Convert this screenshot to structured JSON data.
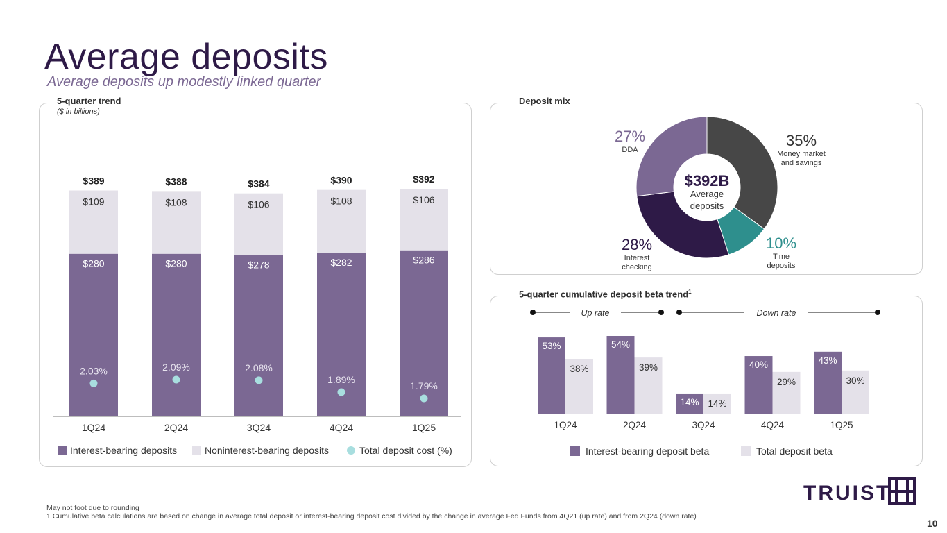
{
  "title": "Average deposits",
  "subtitle": "Average deposits up modestly linked quarter",
  "panels": {
    "trend_label": "5-quarter trend",
    "trend_sublabel": "($ in billions)",
    "mix_label": "Deposit mix",
    "beta_label": "5-quarter cumulative deposit beta trend",
    "beta_superscript": "1"
  },
  "colors": {
    "interest_bearing": "#7b6893",
    "noninterest": "#e4e1e9",
    "cost_dot": "#a8dedf",
    "dark": "#2e1a47",
    "mm": "#474747",
    "time": "#2e8f8d",
    "ib_beta": "#7b6893",
    "total_beta": "#e4e1e9"
  },
  "chart_data": [
    {
      "type": "bar",
      "title": "5-quarter trend",
      "ylabel": "($ in billions)",
      "categories": [
        "1Q24",
        "2Q24",
        "3Q24",
        "4Q24",
        "1Q25"
      ],
      "series": [
        {
          "name": "Interest-bearing deposits",
          "values": [
            280,
            280,
            278,
            282,
            286
          ],
          "labels": [
            "$280",
            "$280",
            "$278",
            "$282",
            "$286"
          ]
        },
        {
          "name": "Noninterest-bearing deposits",
          "values": [
            109,
            108,
            106,
            108,
            106
          ],
          "labels": [
            "$109",
            "$108",
            "$106",
            "$108",
            "$106"
          ]
        },
        {
          "name": "Total deposit cost (%)",
          "values": [
            2.03,
            2.09,
            2.08,
            1.89,
            1.79
          ],
          "labels": [
            "2.03%",
            "2.09%",
            "2.08%",
            "1.89%",
            "1.79%"
          ]
        }
      ],
      "totals": [
        389,
        388,
        384,
        390,
        392
      ],
      "total_labels": [
        "$389",
        "$388",
        "$384",
        "$390",
        "$392"
      ],
      "legend": [
        "Interest-bearing deposits",
        "Noninterest-bearing deposits",
        "Total deposit cost (%)"
      ],
      "ylim": [
        0,
        400
      ]
    },
    {
      "type": "pie",
      "title": "Deposit mix",
      "center_value": "$392B",
      "center_label": [
        "Average",
        "deposits"
      ],
      "slices": [
        {
          "name": "Money market and savings",
          "value": 35,
          "pct_label": "35%",
          "label_lines": [
            "Money market",
            "and savings"
          ]
        },
        {
          "name": "Time deposits",
          "value": 10,
          "pct_label": "10%",
          "label_lines": [
            "Time",
            "deposits"
          ]
        },
        {
          "name": "Interest checking",
          "value": 28,
          "pct_label": "28%",
          "label_lines": [
            "Interest",
            "checking"
          ]
        },
        {
          "name": "DDA",
          "value": 27,
          "pct_label": "27%",
          "label_lines": [
            "DDA"
          ]
        }
      ]
    },
    {
      "type": "bar",
      "title": "5-quarter cumulative deposit beta trend",
      "categories": [
        "1Q24",
        "2Q24",
        "3Q24",
        "4Q24",
        "1Q25"
      ],
      "series": [
        {
          "name": "Interest-bearing deposit beta",
          "values": [
            53,
            54,
            14,
            40,
            43
          ],
          "labels": [
            "53%",
            "54%",
            "14%",
            "40%",
            "43%"
          ]
        },
        {
          "name": "Total deposit beta",
          "values": [
            38,
            39,
            14,
            29,
            30
          ],
          "labels": [
            "38%",
            "39%",
            "14%",
            "29%",
            "30%"
          ]
        }
      ],
      "annotations": {
        "up_rate": "Up rate",
        "down_rate": "Down rate"
      },
      "legend": [
        "Interest-bearing deposit beta",
        "Total deposit beta"
      ],
      "ylim": [
        0,
        60
      ]
    }
  ],
  "footnotes": {
    "line1": "May not foot due to rounding",
    "line2": "1 Cumulative beta calculations are based on change in average total deposit or interest-bearing deposit cost divided by the change in average Fed Funds from 4Q21 (up rate) and from 2Q24 (down rate)"
  },
  "logo": {
    "text": "TRUIST"
  },
  "page_number": "10"
}
